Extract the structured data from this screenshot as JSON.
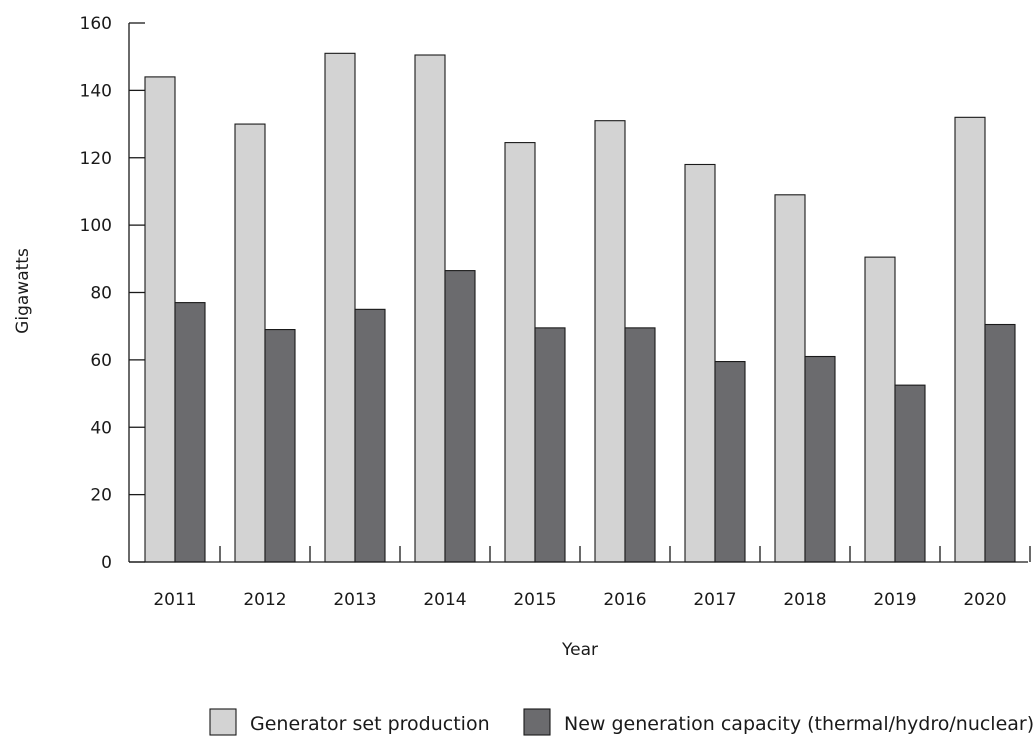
{
  "chart_data": {
    "type": "bar",
    "title": "",
    "xlabel": "Year",
    "ylabel": "Gigawatts",
    "categories": [
      "2011",
      "2012",
      "2013",
      "2014",
      "2015",
      "2016",
      "2017",
      "2018",
      "2019",
      "2020"
    ],
    "series": [
      {
        "name": "Generator set production",
        "color": "#d3d3d3",
        "values": [
          144,
          130,
          151,
          150.5,
          124.5,
          131,
          118,
          109,
          90.5,
          132
        ]
      },
      {
        "name": "New generation capacity (thermal/hydro/nuclear)",
        "color": "#6b6b6e",
        "values": [
          77,
          69,
          75,
          86.5,
          69.5,
          69.5,
          59.5,
          61,
          52.5,
          70.5
        ]
      }
    ],
    "ylim": [
      0,
      160
    ],
    "yticks": [
      "0",
      "20",
      "40",
      "60",
      "80",
      "100",
      "120",
      "140",
      "160"
    ],
    "grid": false,
    "legend_position": "bottom-right"
  }
}
